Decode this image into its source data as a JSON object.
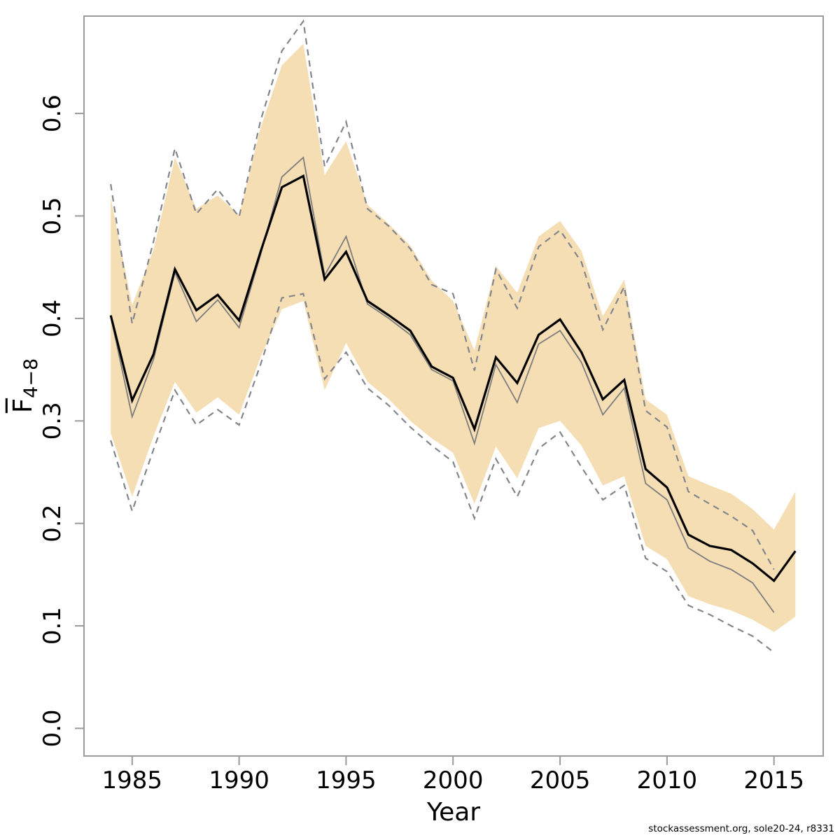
{
  "page": {
    "background": "#ffffff"
  },
  "axis_labels": {
    "x": "Year",
    "y_main": "F",
    "y_sub": "4−8"
  },
  "footer": {
    "text": "stockassessment.org, sole20-24, r8331"
  },
  "colors": {
    "band_fill": "#f5deb4",
    "current_line": "#000000",
    "previous_line": "#7d7d7d",
    "previous_ci_dashed": "#82868c",
    "frame": "#9a9a9a",
    "tick": "#9a9a9a",
    "text": "#000000"
  },
  "chart_data": {
    "type": "line",
    "title": "",
    "xlabel": "Year",
    "ylabel": "Fbar 4-8",
    "grid": false,
    "legend": "none",
    "xlim": [
      1982.75,
      2017.3
    ],
    "ylim": [
      -0.027,
      0.695
    ],
    "x_ticks": [
      {
        "v": 1985,
        "label": "1985"
      },
      {
        "v": 1990,
        "label": "1990"
      },
      {
        "v": 1995,
        "label": "1995"
      },
      {
        "v": 2000,
        "label": "2000"
      },
      {
        "v": 2005,
        "label": "2005"
      },
      {
        "v": 2010,
        "label": "2010"
      },
      {
        "v": 2015,
        "label": "2015"
      }
    ],
    "y_ticks": [
      {
        "v": 0.0,
        "label": "0.0"
      },
      {
        "v": 0.1,
        "label": "0.1"
      },
      {
        "v": 0.2,
        "label": "0.2"
      },
      {
        "v": 0.3,
        "label": "0.3"
      },
      {
        "v": 0.4,
        "label": "0.4"
      },
      {
        "v": 0.5,
        "label": "0.5"
      },
      {
        "v": 0.6,
        "label": "0.6"
      }
    ],
    "years": [
      1984,
      1985,
      1986,
      1987,
      1988,
      1989,
      1990,
      1991,
      1992,
      1993,
      1994,
      1995,
      1996,
      1997,
      1998,
      1999,
      2000,
      2001,
      2002,
      2003,
      2004,
      2005,
      2006,
      2007,
      2008,
      2009,
      2010,
      2011,
      2012,
      2013,
      2014,
      2015,
      2016
    ],
    "estimate": [
      0.403,
      0.32,
      0.365,
      0.448,
      0.408,
      0.423,
      0.398,
      0.465,
      0.528,
      0.539,
      0.438,
      0.465,
      0.417,
      0.403,
      0.388,
      0.353,
      0.342,
      0.292,
      0.362,
      0.337,
      0.384,
      0.399,
      0.367,
      0.321,
      0.34,
      0.253,
      0.235,
      0.189,
      0.178,
      0.174,
      0.161,
      0.144,
      0.173
    ],
    "ci_low": [
      0.288,
      0.226,
      0.285,
      0.338,
      0.308,
      0.323,
      0.306,
      0.362,
      0.409,
      0.417,
      0.33,
      0.376,
      0.338,
      0.321,
      0.3,
      0.283,
      0.269,
      0.219,
      0.275,
      0.244,
      0.293,
      0.3,
      0.276,
      0.237,
      0.246,
      0.178,
      0.165,
      0.129,
      0.121,
      0.115,
      0.106,
      0.094,
      0.109
    ],
    "ci_high": [
      0.518,
      0.413,
      0.467,
      0.557,
      0.507,
      0.52,
      0.501,
      0.586,
      0.647,
      0.668,
      0.54,
      0.573,
      0.511,
      0.492,
      0.471,
      0.437,
      0.417,
      0.369,
      0.451,
      0.425,
      0.48,
      0.495,
      0.466,
      0.402,
      0.438,
      0.321,
      0.306,
      0.246,
      0.237,
      0.229,
      0.214,
      0.194,
      0.231
    ],
    "previous_estimate": [
      0.402,
      0.304,
      0.36,
      0.445,
      0.397,
      0.418,
      0.391,
      0.462,
      0.538,
      0.557,
      0.442,
      0.48,
      0.414,
      0.4,
      0.384,
      0.35,
      0.339,
      0.278,
      0.355,
      0.318,
      0.375,
      0.388,
      0.357,
      0.306,
      0.332,
      0.239,
      0.223,
      0.176,
      0.163,
      0.155,
      0.142,
      0.113,
      null
    ],
    "previous_ci_low": [
      0.281,
      0.212,
      0.272,
      0.33,
      0.296,
      0.311,
      0.296,
      0.355,
      0.42,
      0.424,
      0.341,
      0.367,
      0.332,
      0.315,
      0.294,
      0.276,
      0.26,
      0.205,
      0.263,
      0.226,
      0.273,
      0.289,
      0.255,
      0.223,
      0.237,
      0.166,
      0.153,
      0.12,
      0.111,
      0.1,
      0.09,
      0.074,
      null
    ],
    "previous_ci_high": [
      0.531,
      0.395,
      0.475,
      0.566,
      0.502,
      0.526,
      0.499,
      0.593,
      0.661,
      0.69,
      0.548,
      0.592,
      0.507,
      0.49,
      0.468,
      0.433,
      0.424,
      0.349,
      0.448,
      0.41,
      0.47,
      0.486,
      0.455,
      0.389,
      0.431,
      0.31,
      0.294,
      0.231,
      0.219,
      0.207,
      0.193,
      0.155,
      null
    ]
  }
}
